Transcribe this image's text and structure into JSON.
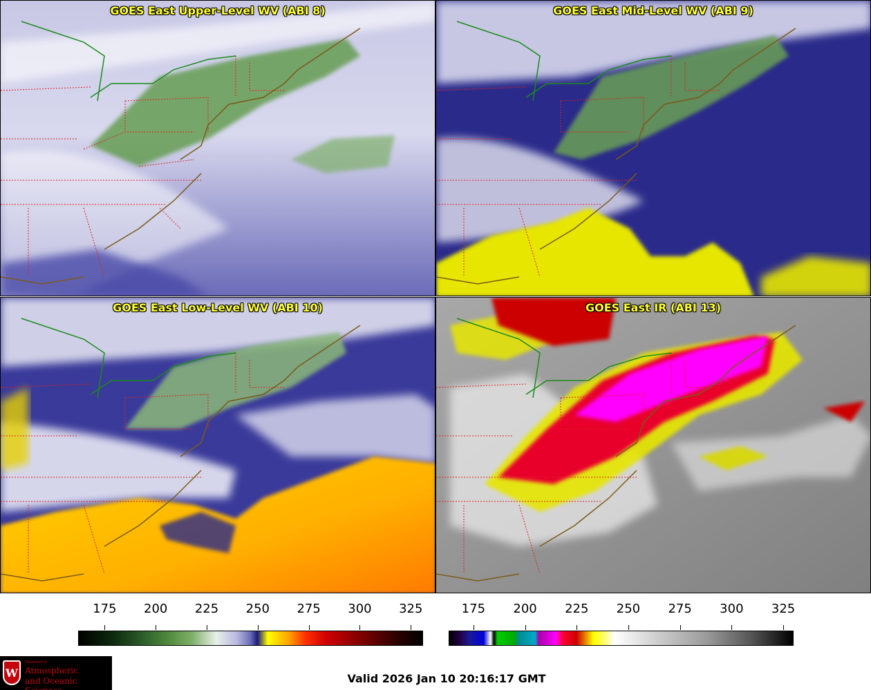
{
  "panels": {
    "upper_level": {
      "title": "GOES East Upper-Level WV (ABI 8)"
    },
    "mid_level": {
      "title": "GOES East Mid-Level WV (ABI 9)"
    },
    "low_level": {
      "title": "GOES East Low-Level WV (ABI 10)"
    },
    "infrared": {
      "title": "GOES East IR (ABI 13)"
    }
  },
  "colorbars": {
    "water_vapor": {
      "ticks": [
        "175",
        "200",
        "225",
        "250",
        "275",
        "300",
        "325"
      ],
      "tick_values": [
        175,
        200,
        225,
        250,
        275,
        300,
        325
      ],
      "min": 162,
      "max": 331
    },
    "infrared": {
      "ticks": [
        "175",
        "200",
        "225",
        "250",
        "275",
        "300",
        "325"
      ],
      "tick_values": [
        175,
        200,
        225,
        250,
        275,
        300,
        325
      ],
      "min": 163,
      "max": 330
    }
  },
  "logo": {
    "crest_letter": "W",
    "department": "Department of",
    "line1": "Atmospheric",
    "line2": "and Oceanic Sciences"
  },
  "valid_time": "Valid 2026 Jan 10 20:16:17 GMT",
  "colors": {
    "title_text": "#ffff33",
    "state_borders": "#e02020",
    "coastlines": "#7a5a1a",
    "country_border": "#1a8a1a"
  }
}
